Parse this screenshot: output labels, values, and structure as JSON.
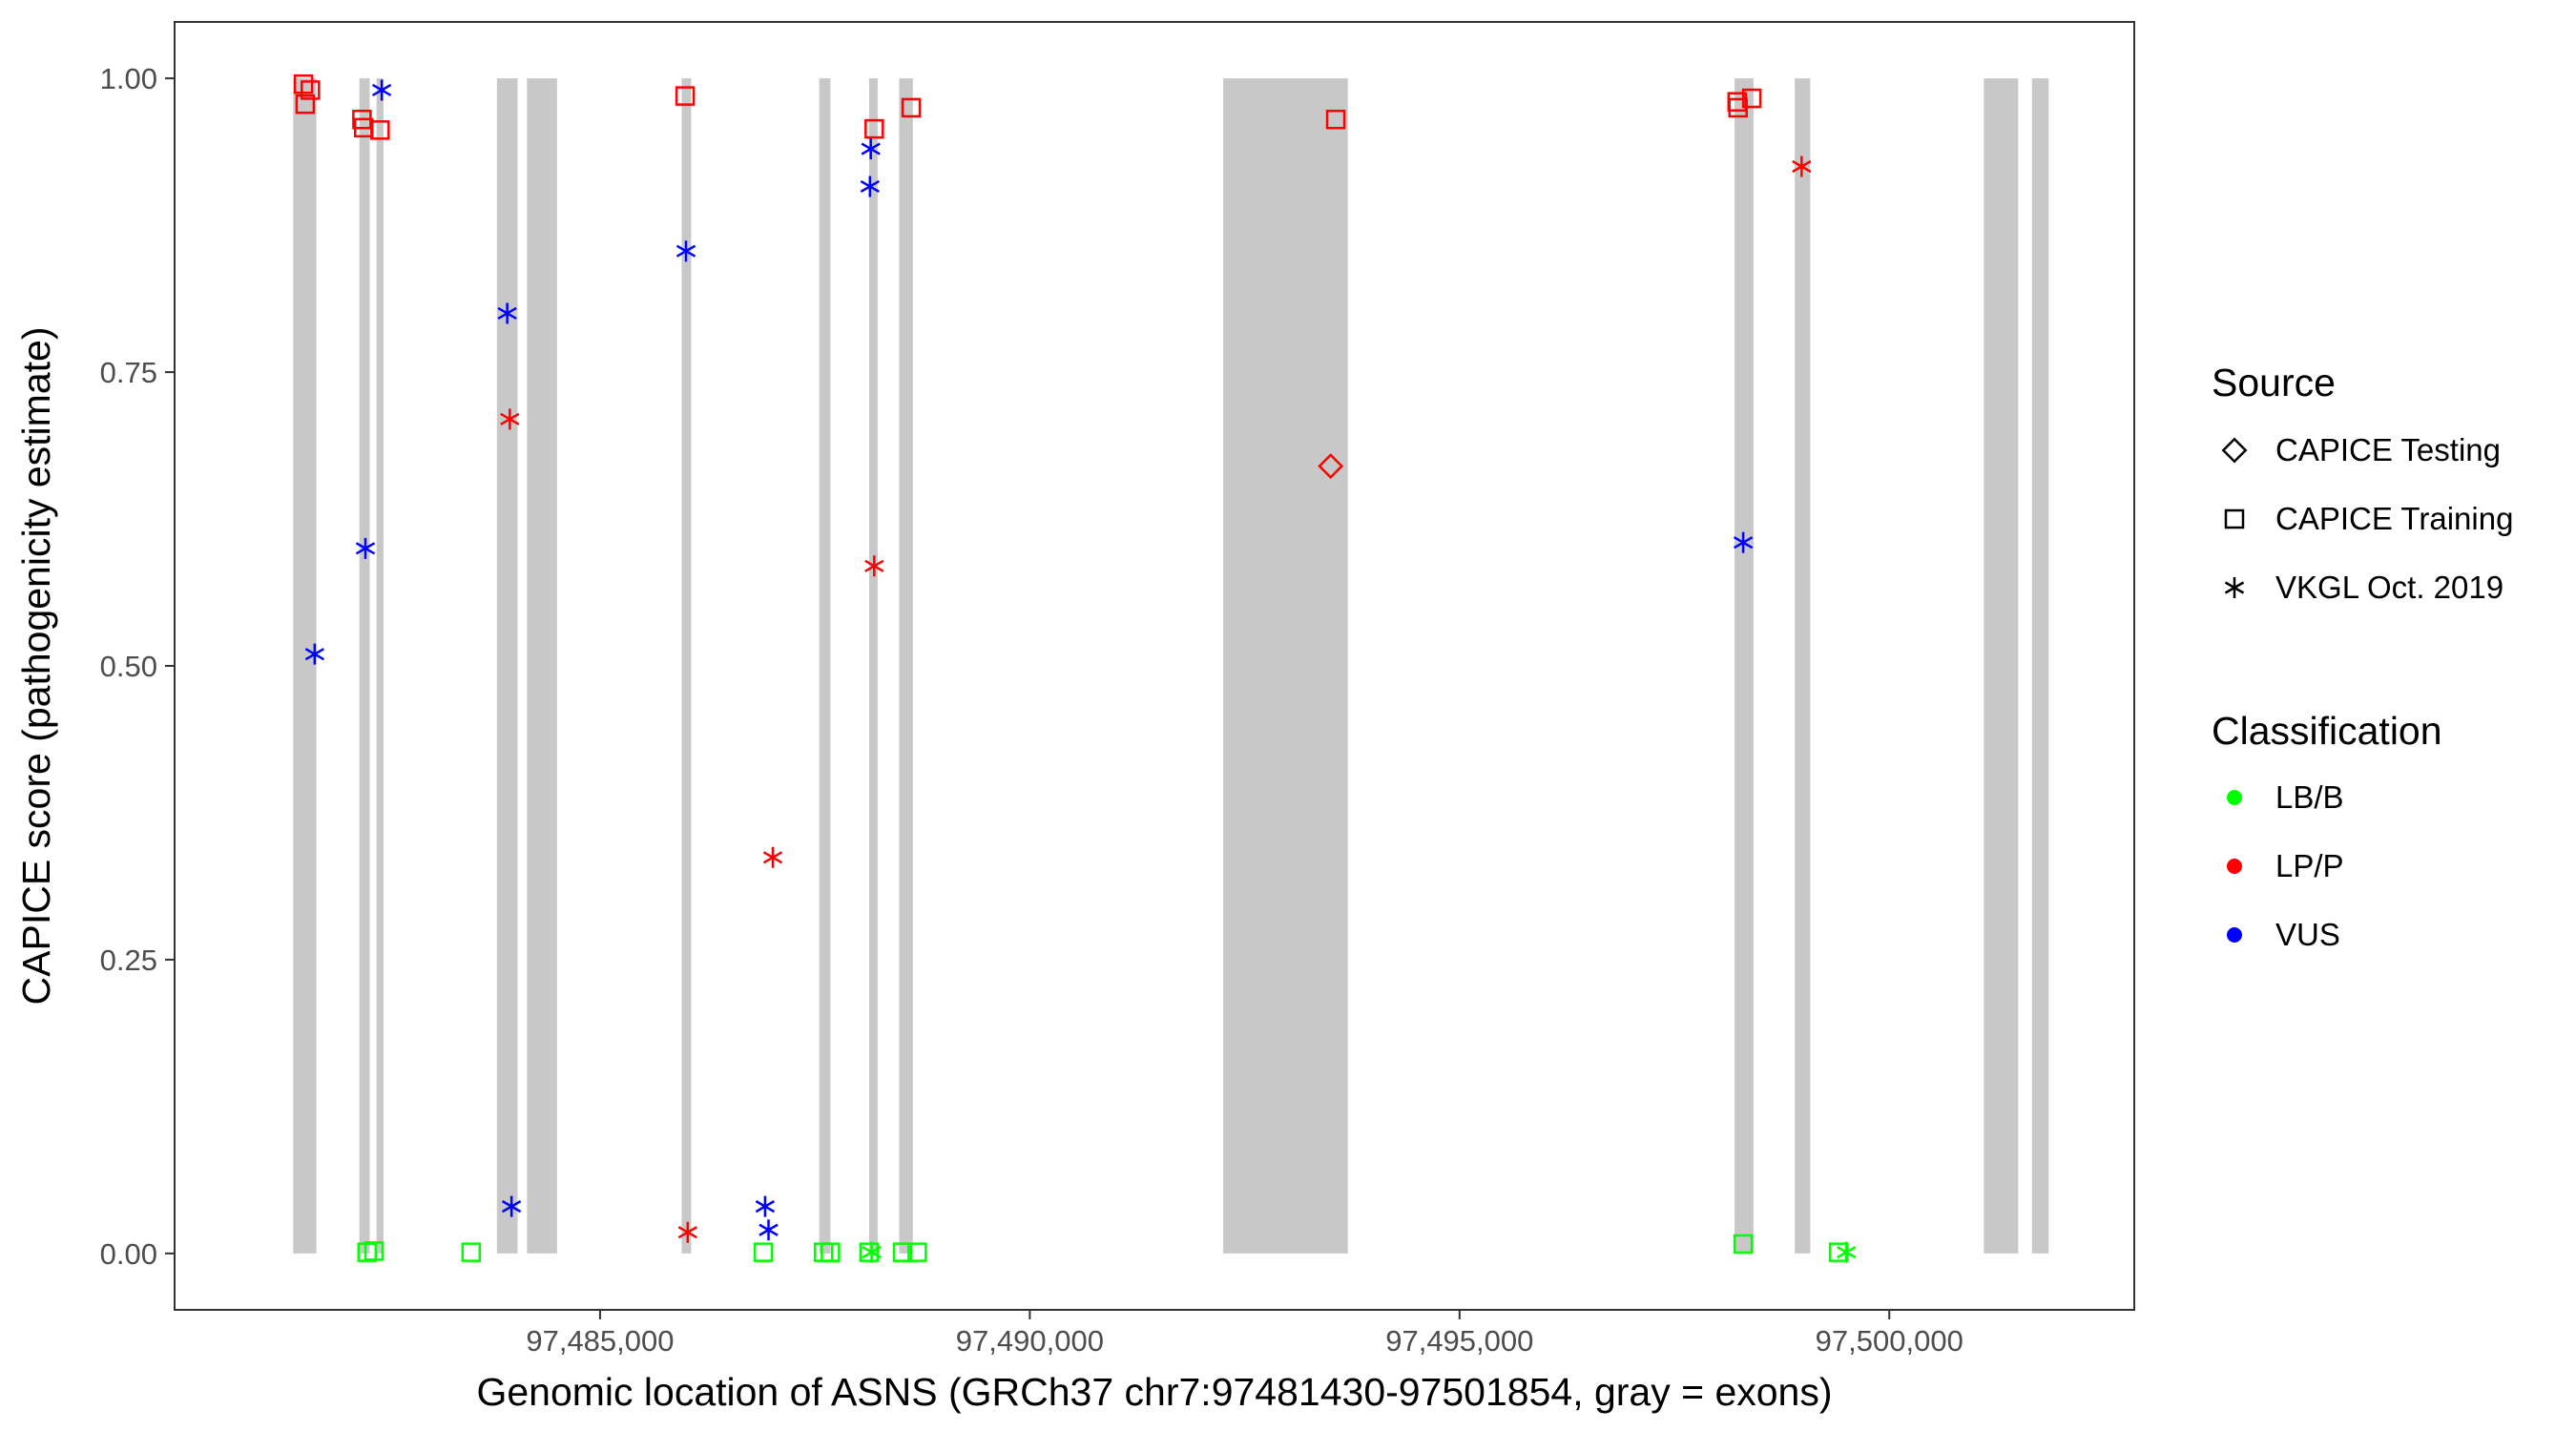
{
  "chart_data": {
    "type": "scatter",
    "title": "",
    "xlabel": "Genomic location of ASNS (GRCh37 chr7:97481430-97501854, gray = exons)",
    "ylabel": "CAPICE score (pathogenicity estimate)",
    "xlim": [
      97480050,
      97502850
    ],
    "ylim": [
      -0.048,
      1.048
    ],
    "x_ticks": [
      97485000,
      97490000,
      97495000,
      97500000
    ],
    "x_tick_labels": [
      "97,485,000",
      "97,490,000",
      "97,495,000",
      "97,500,000"
    ],
    "y_ticks": [
      0,
      0.25,
      0.5,
      0.75,
      1
    ],
    "y_tick_labels": [
      "0.00",
      "0.25",
      "0.50",
      "0.75",
      "1.00"
    ],
    "grid": false,
    "exons": [
      [
        97481430,
        97481700
      ],
      [
        97482200,
        97482320
      ],
      [
        97482400,
        97482480
      ],
      [
        97483800,
        97484040
      ],
      [
        97484150,
        97484500
      ],
      [
        97485950,
        97486060
      ],
      [
        97487550,
        97487680
      ],
      [
        97488130,
        97488230
      ],
      [
        97488480,
        97488640
      ],
      [
        97492250,
        97493700
      ],
      [
        97498200,
        97498420
      ],
      [
        97498900,
        97499080
      ],
      [
        97501100,
        97501500
      ],
      [
        97501660,
        97501854
      ]
    ],
    "colors": {
      "exon": "#c8c8c8",
      "LB/B": "#00ff00",
      "LP/P": "#ff0000",
      "VUS": "#0000ff",
      "axis": "#333333",
      "text": "#4d4d4d"
    },
    "legend_position": "right",
    "legend": {
      "source_title": "Source",
      "source_items": [
        {
          "label": "CAPICE Testing",
          "shape": "diamond"
        },
        {
          "label": "CAPICE Training",
          "shape": "square"
        },
        {
          "label": "VKGL Oct. 2019",
          "shape": "asterisk"
        }
      ],
      "class_title": "Classification",
      "class_items": [
        {
          "label": "LB/B"
        },
        {
          "label": "LP/P"
        },
        {
          "label": "VUS"
        }
      ]
    },
    "points": [
      {
        "x": 97481550,
        "y": 0.995,
        "source": "CAPICE Training",
        "class": "LP/P"
      },
      {
        "x": 97481630,
        "y": 0.99,
        "source": "CAPICE Training",
        "class": "LP/P"
      },
      {
        "x": 97481570,
        "y": 0.978,
        "source": "CAPICE Training",
        "class": "LP/P"
      },
      {
        "x": 97481680,
        "y": 0.51,
        "source": "VKGL Oct. 2019",
        "class": "VUS"
      },
      {
        "x": 97482230,
        "y": 0.965,
        "source": "CAPICE Training",
        "class": "LP/P"
      },
      {
        "x": 97482250,
        "y": 0.958,
        "source": "CAPICE Training",
        "class": "LP/P"
      },
      {
        "x": 97482440,
        "y": 0.956,
        "source": "CAPICE Training",
        "class": "LP/P"
      },
      {
        "x": 97482460,
        "y": 0.99,
        "source": "VKGL Oct. 2019",
        "class": "VUS"
      },
      {
        "x": 97482270,
        "y": 0.6,
        "source": "VKGL Oct. 2019",
        "class": "VUS"
      },
      {
        "x": 97482290,
        "y": 0.001,
        "source": "CAPICE Training",
        "class": "LB/B"
      },
      {
        "x": 97482370,
        "y": 0.002,
        "source": "CAPICE Training",
        "class": "LB/B"
      },
      {
        "x": 97483500,
        "y": 0.001,
        "source": "CAPICE Training",
        "class": "LB/B"
      },
      {
        "x": 97483920,
        "y": 0.8,
        "source": "VKGL Oct. 2019",
        "class": "VUS"
      },
      {
        "x": 97483950,
        "y": 0.71,
        "source": "VKGL Oct. 2019",
        "class": "LP/P"
      },
      {
        "x": 97483970,
        "y": 0.04,
        "source": "VKGL Oct. 2019",
        "class": "VUS"
      },
      {
        "x": 97485990,
        "y": 0.985,
        "source": "CAPICE Training",
        "class": "LP/P"
      },
      {
        "x": 97486000,
        "y": 0.853,
        "source": "VKGL Oct. 2019",
        "class": "VUS"
      },
      {
        "x": 97486020,
        "y": 0.018,
        "source": "VKGL Oct. 2019",
        "class": "LP/P"
      },
      {
        "x": 97486900,
        "y": 0.001,
        "source": "CAPICE Training",
        "class": "LB/B"
      },
      {
        "x": 97486920,
        "y": 0.04,
        "source": "VKGL Oct. 2019",
        "class": "VUS"
      },
      {
        "x": 97486960,
        "y": 0.02,
        "source": "VKGL Oct. 2019",
        "class": "VUS"
      },
      {
        "x": 97487010,
        "y": 0.337,
        "source": "VKGL Oct. 2019",
        "class": "LP/P"
      },
      {
        "x": 97487600,
        "y": 0.001,
        "source": "CAPICE Training",
        "class": "LB/B"
      },
      {
        "x": 97487680,
        "y": 0.001,
        "source": "CAPICE Training",
        "class": "LB/B"
      },
      {
        "x": 97488130,
        "y": 0.001,
        "source": "CAPICE Training",
        "class": "LB/B"
      },
      {
        "x": 97488160,
        "y": 0.001,
        "source": "VKGL Oct. 2019",
        "class": "LB/B"
      },
      {
        "x": 97488150,
        "y": 0.94,
        "source": "VKGL Oct. 2019",
        "class": "VUS"
      },
      {
        "x": 97488140,
        "y": 0.908,
        "source": "VKGL Oct. 2019",
        "class": "VUS"
      },
      {
        "x": 97488190,
        "y": 0.957,
        "source": "CAPICE Training",
        "class": "LP/P"
      },
      {
        "x": 97488190,
        "y": 0.585,
        "source": "VKGL Oct. 2019",
        "class": "LP/P"
      },
      {
        "x": 97488520,
        "y": 0.001,
        "source": "CAPICE Training",
        "class": "LB/B"
      },
      {
        "x": 97488620,
        "y": 0.975,
        "source": "CAPICE Training",
        "class": "LP/P"
      },
      {
        "x": 97488690,
        "y": 0.001,
        "source": "CAPICE Training",
        "class": "LB/B"
      },
      {
        "x": 97493500,
        "y": 0.67,
        "source": "CAPICE Testing",
        "class": "LP/P"
      },
      {
        "x": 97493560,
        "y": 0.965,
        "source": "CAPICE Training",
        "class": "LP/P"
      },
      {
        "x": 97498230,
        "y": 0.98,
        "source": "CAPICE Training",
        "class": "LP/P"
      },
      {
        "x": 97498240,
        "y": 0.975,
        "source": "CAPICE Training",
        "class": "LP/P"
      },
      {
        "x": 97498400,
        "y": 0.983,
        "source": "CAPICE Training",
        "class": "LP/P"
      },
      {
        "x": 97498300,
        "y": 0.605,
        "source": "VKGL Oct. 2019",
        "class": "VUS"
      },
      {
        "x": 97498300,
        "y": 0.008,
        "source": "CAPICE Training",
        "class": "LB/B"
      },
      {
        "x": 97498980,
        "y": 0.925,
        "source": "VKGL Oct. 2019",
        "class": "LP/P"
      },
      {
        "x": 97499410,
        "y": 0.001,
        "source": "CAPICE Training",
        "class": "LB/B"
      },
      {
        "x": 97499500,
        "y": 0.001,
        "source": "VKGL Oct. 2019",
        "class": "LB/B"
      }
    ]
  }
}
